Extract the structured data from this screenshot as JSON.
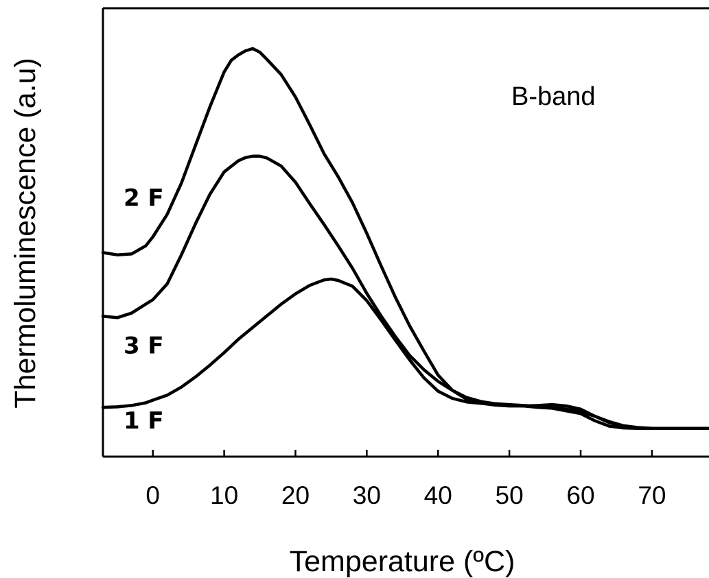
{
  "chart_data": {
    "type": "line",
    "xlabel": "Temperature (ºC)",
    "ylabel": "Thermoluminescence (a.u)",
    "annotation": "B-band",
    "xlim": [
      -7,
      78
    ],
    "xticks": [
      0,
      10,
      20,
      30,
      40,
      50,
      60,
      70
    ],
    "xtick_labels": [
      "0",
      "10",
      "20",
      "30",
      "40",
      "50",
      "60",
      "70"
    ],
    "ylim": [
      0,
      100
    ],
    "y_ticks_shown": false,
    "grid": false,
    "colors": {
      "line": "#000000",
      "axis": "#000000",
      "background": "#ffffff"
    },
    "series": [
      {
        "name": "2 F",
        "x": [
          -7,
          -5,
          -3,
          -1,
          0,
          2,
          4,
          6,
          8,
          10,
          11,
          12,
          13,
          14,
          15,
          16,
          18,
          20,
          22,
          24,
          26,
          28,
          30,
          32,
          34,
          36,
          38,
          40,
          42,
          44,
          46,
          48,
          50,
          52,
          54,
          56,
          58,
          60,
          62,
          64,
          66,
          68,
          70,
          72,
          74,
          76,
          78
        ],
        "y": [
          45.5,
          45,
          45.2,
          47,
          49,
          54,
          61,
          69.5,
          78,
          85.8,
          88.4,
          89.6,
          90.5,
          91,
          90.2,
          88.6,
          85.2,
          80.2,
          74,
          67.6,
          62.4,
          56.6,
          49.8,
          42.6,
          35.6,
          29.2,
          23.6,
          18.2,
          14.8,
          12.8,
          12.2,
          11.8,
          11.5,
          11.3,
          11,
          10.8,
          10.2,
          9.6,
          8,
          6.8,
          6.4,
          6.3,
          6.3,
          6.3,
          6.3,
          6.3,
          6.3
        ]
      },
      {
        "name": "3 F",
        "x": [
          -7,
          -5,
          -3,
          -1,
          0,
          2,
          4,
          6,
          8,
          10,
          12,
          13,
          14,
          15,
          16,
          18,
          20,
          22,
          24,
          26,
          28,
          30,
          32,
          34,
          36,
          38,
          40,
          42,
          44,
          46,
          48,
          50,
          52,
          54,
          56,
          58,
          60,
          62,
          64,
          66,
          68,
          70,
          72,
          74,
          76,
          78
        ],
        "y": [
          31.3,
          31,
          32,
          34,
          35,
          38.5,
          45,
          52,
          58.5,
          63.5,
          66,
          66.7,
          67,
          67,
          66.6,
          64.8,
          61.2,
          56.4,
          51.8,
          47,
          42,
          36.4,
          31.4,
          26.8,
          22.6,
          19.4,
          16.8,
          14.8,
          13.2,
          12.3,
          11.8,
          11.6,
          11.4,
          11.2,
          11,
          10.6,
          10,
          9,
          7.6,
          6.8,
          6.4,
          6.3,
          6.3,
          6.3,
          6.3,
          6.3
        ]
      },
      {
        "name": "1 F",
        "x": [
          -7,
          -5,
          -3,
          -1,
          0,
          2,
          4,
          6,
          8,
          10,
          12,
          14,
          16,
          18,
          20,
          22,
          24,
          25,
          26,
          28,
          30,
          32,
          34,
          36,
          38,
          40,
          42,
          44,
          46,
          48,
          50,
          52,
          54,
          56,
          58,
          60,
          62,
          64,
          66,
          68,
          70,
          72,
          74,
          76,
          78
        ],
        "y": [
          11,
          11.1,
          11.4,
          12,
          12.6,
          13.7,
          15.5,
          17.8,
          20.4,
          23.2,
          26.2,
          28.8,
          31.4,
          34,
          36.3,
          38.2,
          39.4,
          39.6,
          39.3,
          38,
          34.8,
          30.5,
          26,
          21.6,
          17.6,
          14.6,
          13,
          12.2,
          11.9,
          11.5,
          11.3,
          11.3,
          11.4,
          11.6,
          11.3,
          10.6,
          9,
          7.8,
          6.9,
          6.5,
          6.3,
          6.3,
          6.3,
          6.3,
          6.3
        ]
      }
    ]
  }
}
